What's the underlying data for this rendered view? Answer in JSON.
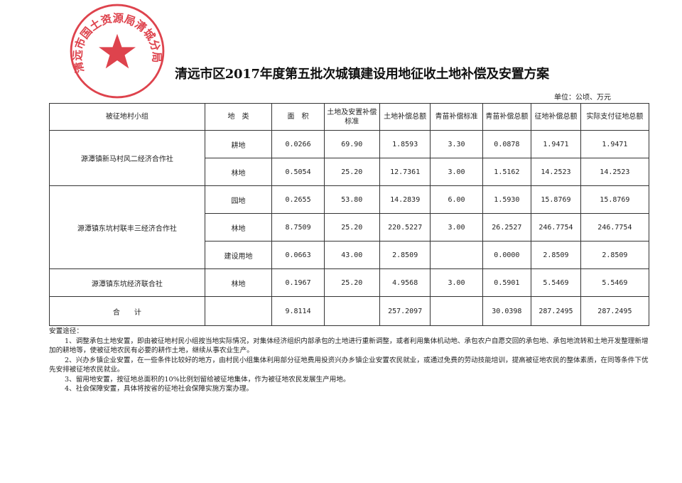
{
  "title": "清远市区2017年度第五批次城镇建设用地征收土地补偿及安置方案",
  "unit": "单位：公顷、万元",
  "seal": {
    "text": "清远市国土资源局清城分局",
    "color": "#d9232e"
  },
  "table": {
    "headers": [
      "被征地村小组",
      "地　类",
      "面　积",
      "土地及安置补偿标准",
      "土地补偿总额",
      "青苗补偿标准",
      "青苗补偿总额",
      "征地补偿总额",
      "实际支付征地总额"
    ],
    "groups": [
      {
        "name": "源潭镇新马村风二经济合作社",
        "rows": [
          [
            "耕地",
            "0.0266",
            "69.90",
            "1.8593",
            "3.30",
            "0.0878",
            "1.9471",
            "1.9471"
          ],
          [
            "林地",
            "0.5054",
            "25.20",
            "12.7361",
            "3.00",
            "1.5162",
            "14.2523",
            "14.2523"
          ]
        ]
      },
      {
        "name": "源潭镇东坑村联丰三经济合作社",
        "rows": [
          [
            "园地",
            "0.2655",
            "53.80",
            "14.2839",
            "6.00",
            "1.5930",
            "15.8769",
            "15.8769"
          ],
          [
            "林地",
            "8.7509",
            "25.20",
            "220.5227",
            "3.00",
            "26.2527",
            "246.7754",
            "246.7754"
          ],
          [
            "建设用地",
            "0.0663",
            "43.00",
            "2.8509",
            "",
            "0.0000",
            "2.8509",
            "2.8509"
          ]
        ]
      },
      {
        "name": "源潭镇东坑经济联合社",
        "rows": [
          [
            "林地",
            "0.1967",
            "25.20",
            "4.9568",
            "3.00",
            "0.5901",
            "5.5469",
            "5.5469"
          ]
        ]
      }
    ],
    "total": {
      "label": "合　　计",
      "values": [
        "",
        "9.8114",
        "",
        "257.2097",
        "",
        "30.0398",
        "287.2495",
        "287.2495"
      ]
    }
  },
  "notes": {
    "heading": "安置途径：",
    "items": [
      "1、调整承包土地安置，即由被征地村民小组按当地实际情况，对集体经济组织内部承包的土地进行重新调整，或者利用集体机动地、承包农户自愿交回的承包地、承包地流转和土地开发整理新增加的耕地等，使被征地农民有必要的耕作土地，继续从事农业生产。",
      "2、兴办乡镇企业安置，在一些条件比较好的地方，由村民小组集体利用部分征地费用投资兴办乡镇企业安置农民就业，或通过免费的劳动技能培训，提高被征地农民的整体素质，在同等条件下优先安排被征地农民就业。",
      "3、留用地安置，按征地总面积的10%比例划留给被征地集体，作为被征地农民发展生产用地。",
      "4、社会保障安置，具体将按省的征地社会保障实施方案办理。"
    ]
  }
}
